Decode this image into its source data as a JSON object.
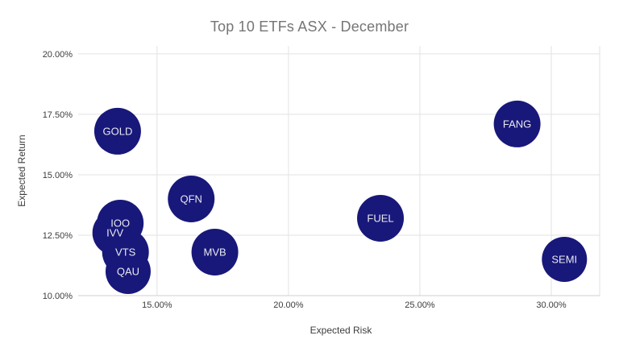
{
  "chart_data": {
    "type": "bubble",
    "title": "Top 10 ETFs ASX - December",
    "xlabel": "Expected Risk",
    "ylabel": "Expected Return",
    "x_ticks": [
      15,
      20,
      25,
      30
    ],
    "x_tick_labels": [
      "15.00%",
      "20.00%",
      "25.00%",
      "30.00%"
    ],
    "y_ticks": [
      10,
      12.5,
      15,
      17.5,
      20
    ],
    "y_tick_labels": [
      "10.00%",
      "12.50%",
      "15.00%",
      "17.50%",
      "20.00%"
    ],
    "xlim": [
      12.0,
      31.84
    ],
    "ylim": [
      10,
      20.33
    ],
    "grid": true,
    "legend": "none",
    "points": [
      {
        "label": "GOLD",
        "expected_risk": 13.5,
        "expected_return": 16.8,
        "size": 29
      },
      {
        "label": "IOO",
        "expected_risk": 13.6,
        "expected_return": 13.0,
        "size": 29
      },
      {
        "label": "IVV",
        "expected_risk": 13.4,
        "expected_return": 12.6,
        "size": 28
      },
      {
        "label": "VTS",
        "expected_risk": 13.8,
        "expected_return": 11.8,
        "size": 29
      },
      {
        "label": "QAU",
        "expected_risk": 13.9,
        "expected_return": 11.0,
        "size": 28
      },
      {
        "label": "QFN",
        "expected_risk": 16.3,
        "expected_return": 14.0,
        "size": 29
      },
      {
        "label": "MVB",
        "expected_risk": 17.2,
        "expected_return": 11.8,
        "size": 29
      },
      {
        "label": "FUEL",
        "expected_risk": 23.5,
        "expected_return": 13.2,
        "size": 29
      },
      {
        "label": "FANG",
        "expected_risk": 28.7,
        "expected_return": 17.1,
        "size": 29
      },
      {
        "label": "SEMI",
        "expected_risk": 30.5,
        "expected_return": 11.5,
        "size": 28
      }
    ],
    "colors": {
      "bubble_fill": "#18187a",
      "bubble_label": "#e8e8ef",
      "gridline": "#e2e2e2",
      "axis_line": "#cfcfcf",
      "plot_border": "#e2e2e2",
      "tick_label": "#3c3c3c",
      "axis_title": "#3c3c3c",
      "title": "#757575",
      "background": "#ffffff"
    }
  }
}
